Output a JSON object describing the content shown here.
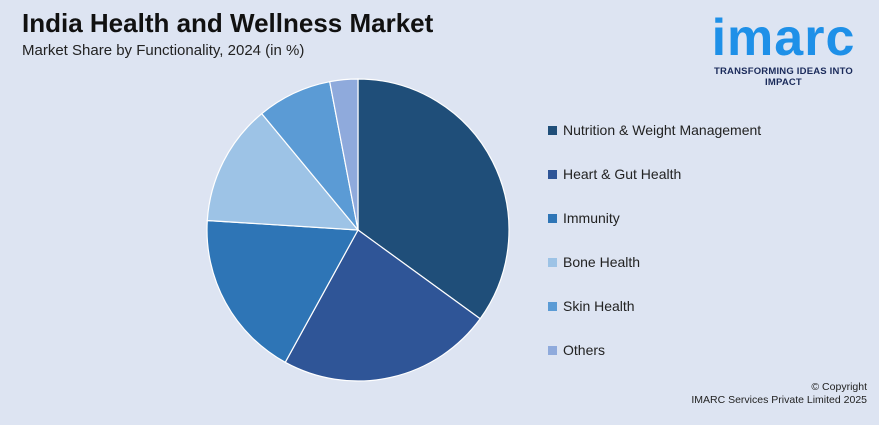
{
  "header": {
    "title": "India Health and Wellness Market",
    "subtitle": "Market Share by Functionality, 2024 (in %)"
  },
  "logo": {
    "mark": "imarc",
    "tagline": "TRANSFORMING IDEAS INTO IMPACT",
    "color": "#1e90e8"
  },
  "footer": {
    "copyright": "© Copyright",
    "owner": "IMARC Services Private Limited 2025"
  },
  "chart_data": {
    "type": "pie",
    "title": "India Health and Wellness Market",
    "subtitle": "Market Share by Functionality, 2024 (in %)",
    "legend_position": "right",
    "start": "top, clockwise",
    "slices": [
      {
        "label": "Nutrition & Weight Management",
        "value": 35,
        "color": "#1f4e79"
      },
      {
        "label": "Heart & Gut Health",
        "value": 23,
        "color": "#2f5597"
      },
      {
        "label": "Immunity",
        "value": 18,
        "color": "#2e75b6"
      },
      {
        "label": "Bone Health",
        "value": 13,
        "color": "#9dc3e6"
      },
      {
        "label": "Skin Health",
        "value": 8,
        "color": "#5b9bd5"
      },
      {
        "label": "Others",
        "value": 3,
        "color": "#8faadc"
      }
    ]
  }
}
